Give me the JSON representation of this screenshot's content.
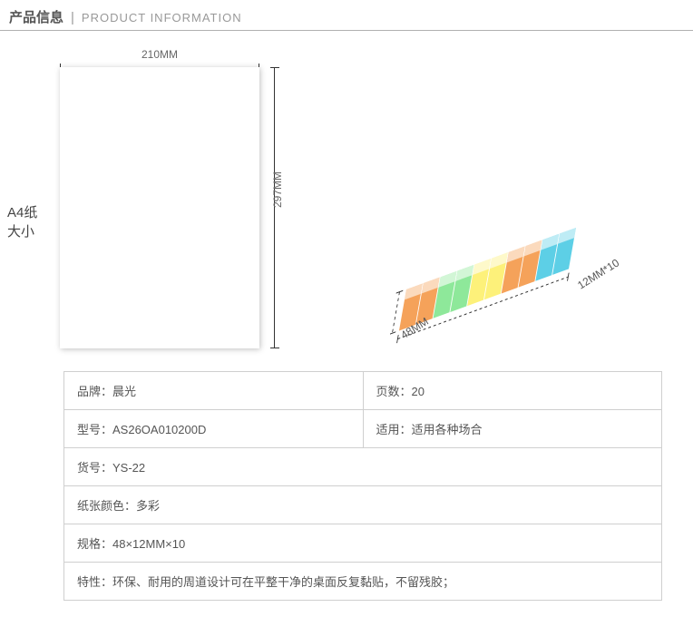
{
  "header": {
    "title_cn": "产品信息",
    "title_en": "PRODUCT INFORMATION"
  },
  "a4_label_line1": "A4纸",
  "a4_label_line2": "大小",
  "dimensions": {
    "width_label": "210MM",
    "height_label": "297MM"
  },
  "sticky": {
    "dim_long": "12MM*10",
    "dim_short": "48MM",
    "colors": [
      "#f5a25a",
      "#f5a25a",
      "#8ee89a",
      "#8ee89a",
      "#fdf17a",
      "#fdf17a",
      "#f5a25a",
      "#f5a25a",
      "#5dcfe6",
      "#5dcfe6"
    ],
    "count": 10
  },
  "table": {
    "row1_left": "品牌：晨光",
    "row1_right": "页数：20",
    "row2_left": "型号：AS26OA010200D",
    "row2_right": "适用：适用各种场合",
    "row3": "货号：YS-22",
    "row4": "纸张颜色：多彩",
    "row5": "规格：48×12MM×10",
    "row6": "特性：环保、耐用的周道设计可在平整干净的桌面反复黏贴，不留残胶；"
  },
  "styling": {
    "border_color": "#cfcfcf",
    "text_color": "#555555",
    "header_underline": "#b0b0b0",
    "background": "#ffffff"
  }
}
